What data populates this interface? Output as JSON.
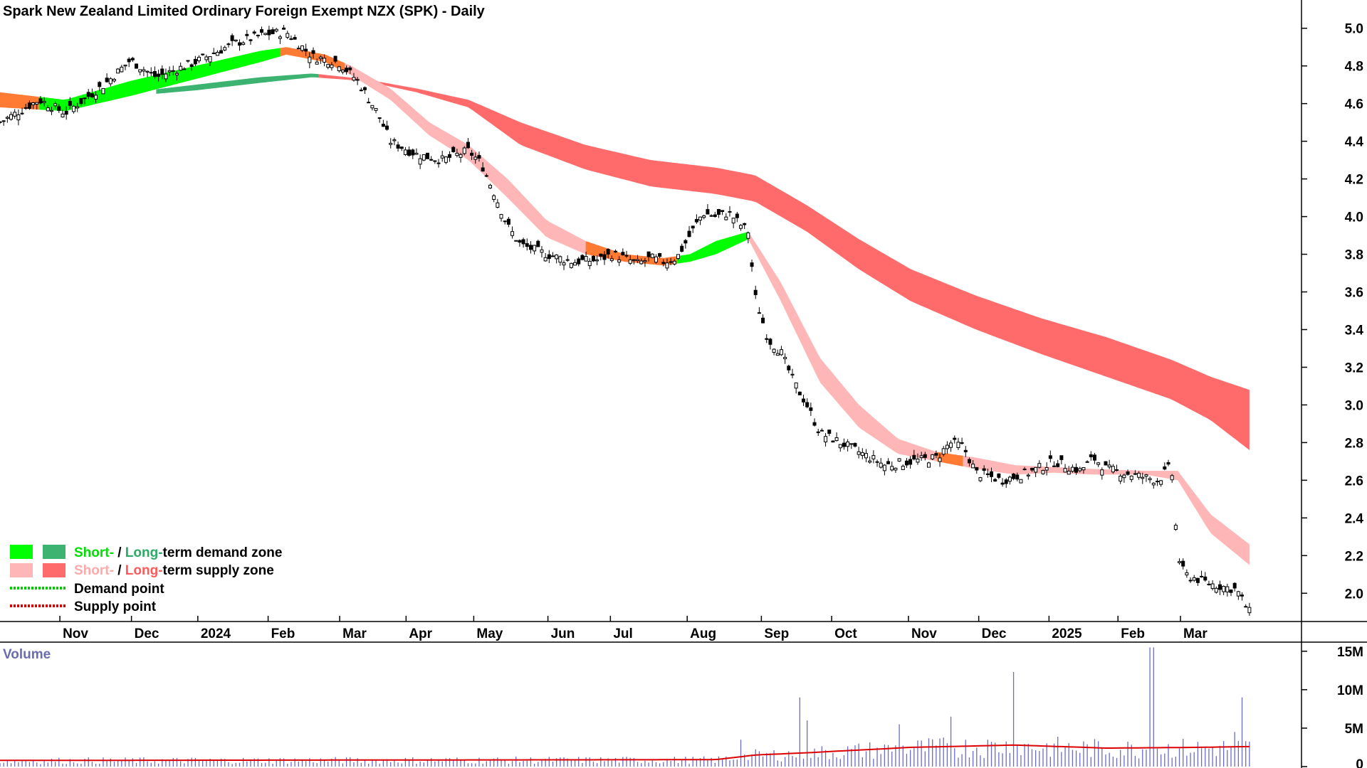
{
  "chart_data": {
    "type": "candlestick",
    "title": "Spark New Zealand Limited Ordinary Foreign Exempt NZX (SPK) - Daily",
    "price_axis": {
      "ylim": [
        1.85,
        5.15
      ],
      "ticks": [
        "5.0",
        "4.8",
        "4.6",
        "4.4",
        "4.2",
        "4.0",
        "3.8",
        "3.6",
        "3.4",
        "3.2",
        "3.0",
        "2.8",
        "2.6",
        "2.4",
        "2.2",
        "2.0"
      ]
    },
    "month_labels": [
      "Nov",
      "Dec",
      "2024",
      "Feb",
      "Mar",
      "Apr",
      "May",
      "Jun",
      "Jul",
      "Aug",
      "Sep",
      "Oct",
      "Nov",
      "Dec",
      "2025",
      "Feb",
      "Mar"
    ],
    "volume_axis": {
      "title": "Volume",
      "ylim": [
        0,
        16
      ],
      "ticks": [
        "15M",
        "10M",
        "5M",
        "0"
      ]
    },
    "legend": [
      {
        "prefix_short": "Short-",
        "sep": " / ",
        "prefix_long": "Long-",
        "rest": "term demand zone",
        "short_color": "#00ff00",
        "long_color": "#3cb371"
      },
      {
        "prefix_short": "Short-",
        "sep": " / ",
        "prefix_long": "Long-",
        "rest": "term supply zone",
        "short_color": "#ffb6b6",
        "long_color": "#ff6b6b"
      },
      {
        "label": "Demand point",
        "color": "#00cc00"
      },
      {
        "label": "Supply point",
        "color": "#dd0000"
      }
    ],
    "price_path": [
      [
        0,
        4.5
      ],
      [
        0.03,
        4.62
      ],
      [
        0.05,
        4.55
      ],
      [
        0.08,
        4.7
      ],
      [
        0.1,
        4.83
      ],
      [
        0.12,
        4.74
      ],
      [
        0.15,
        4.82
      ],
      [
        0.18,
        4.92
      ],
      [
        0.205,
        4.97
      ],
      [
        0.22,
        4.98
      ],
      [
        0.24,
        4.85
      ],
      [
        0.26,
        4.82
      ],
      [
        0.275,
        4.72
      ],
      [
        0.29,
        4.55
      ],
      [
        0.3,
        4.4
      ],
      [
        0.32,
        4.33
      ],
      [
        0.34,
        4.3
      ],
      [
        0.36,
        4.35
      ],
      [
        0.37,
        4.28
      ],
      [
        0.38,
        4.12
      ],
      [
        0.39,
        3.95
      ],
      [
        0.4,
        3.85
      ],
      [
        0.42,
        3.8
      ],
      [
        0.44,
        3.76
      ],
      [
        0.46,
        3.77
      ],
      [
        0.47,
        3.8
      ],
      [
        0.48,
        3.78
      ],
      [
        0.49,
        3.75
      ],
      [
        0.5,
        3.78
      ],
      [
        0.51,
        3.76
      ],
      [
        0.52,
        3.78
      ],
      [
        0.53,
        3.9
      ],
      [
        0.54,
        4.02
      ],
      [
        0.55,
        4.0
      ],
      [
        0.56,
        4.02
      ],
      [
        0.57,
        3.95
      ],
      [
        0.575,
        3.92
      ],
      [
        0.58,
        3.58
      ],
      [
        0.59,
        3.35
      ],
      [
        0.6,
        3.28
      ],
      [
        0.61,
        3.12
      ],
      [
        0.62,
        3.0
      ],
      [
        0.63,
        2.85
      ],
      [
        0.64,
        2.82
      ],
      [
        0.66,
        2.75
      ],
      [
        0.68,
        2.68
      ],
      [
        0.7,
        2.7
      ],
      [
        0.72,
        2.72
      ],
      [
        0.73,
        2.8
      ],
      [
        0.74,
        2.78
      ],
      [
        0.75,
        2.64
      ],
      [
        0.77,
        2.6
      ],
      [
        0.79,
        2.64
      ],
      [
        0.81,
        2.7
      ],
      [
        0.83,
        2.65
      ],
      [
        0.84,
        2.72
      ],
      [
        0.85,
        2.66
      ],
      [
        0.87,
        2.63
      ],
      [
        0.89,
        2.6
      ],
      [
        0.9,
        2.68
      ],
      [
        0.905,
        2.2
      ],
      [
        0.91,
        2.1
      ],
      [
        0.93,
        2.05
      ],
      [
        0.95,
        2.02
      ],
      [
        0.96,
        1.9
      ]
    ],
    "short_band": {
      "top": [
        [
          0,
          4.66
        ],
        [
          0.05,
          4.62
        ],
        [
          0.1,
          4.72
        ],
        [
          0.15,
          4.8
        ],
        [
          0.2,
          4.88
        ],
        [
          0.22,
          4.9
        ],
        [
          0.25,
          4.86
        ],
        [
          0.27,
          4.8
        ],
        [
          0.3,
          4.68
        ],
        [
          0.33,
          4.5
        ],
        [
          0.36,
          4.38
        ],
        [
          0.39,
          4.2
        ],
        [
          0.42,
          3.98
        ],
        [
          0.45,
          3.87
        ],
        [
          0.48,
          3.8
        ],
        [
          0.51,
          3.78
        ],
        [
          0.53,
          3.8
        ],
        [
          0.55,
          3.87
        ],
        [
          0.575,
          3.92
        ],
        [
          0.6,
          3.65
        ],
        [
          0.63,
          3.25
        ],
        [
          0.66,
          3.0
        ],
        [
          0.69,
          2.82
        ],
        [
          0.72,
          2.75
        ],
        [
          0.75,
          2.72
        ],
        [
          0.78,
          2.68
        ],
        [
          0.81,
          2.67
        ],
        [
          0.84,
          2.66
        ],
        [
          0.88,
          2.65
        ],
        [
          0.905,
          2.65
        ],
        [
          0.93,
          2.42
        ],
        [
          0.96,
          2.26
        ]
      ],
      "bottom": [
        [
          0,
          4.58
        ],
        [
          0.05,
          4.56
        ],
        [
          0.1,
          4.64
        ],
        [
          0.15,
          4.73
        ],
        [
          0.2,
          4.82
        ],
        [
          0.22,
          4.86
        ],
        [
          0.25,
          4.82
        ],
        [
          0.27,
          4.75
        ],
        [
          0.3,
          4.62
        ],
        [
          0.33,
          4.43
        ],
        [
          0.36,
          4.3
        ],
        [
          0.39,
          4.1
        ],
        [
          0.42,
          3.89
        ],
        [
          0.45,
          3.8
        ],
        [
          0.48,
          3.76
        ],
        [
          0.51,
          3.74
        ],
        [
          0.53,
          3.76
        ],
        [
          0.55,
          3.8
        ],
        [
          0.575,
          3.88
        ],
        [
          0.6,
          3.55
        ],
        [
          0.63,
          3.12
        ],
        [
          0.66,
          2.88
        ],
        [
          0.69,
          2.74
        ],
        [
          0.72,
          2.7
        ],
        [
          0.75,
          2.66
        ],
        [
          0.78,
          2.63
        ],
        [
          0.81,
          2.64
        ],
        [
          0.84,
          2.63
        ],
        [
          0.88,
          2.63
        ],
        [
          0.905,
          2.6
        ],
        [
          0.93,
          2.32
        ],
        [
          0.96,
          2.15
        ]
      ]
    },
    "long_band": {
      "top": [
        [
          0,
          4.65
        ],
        [
          0.1,
          4.66
        ],
        [
          0.15,
          4.7
        ],
        [
          0.2,
          4.74
        ],
        [
          0.24,
          4.76
        ],
        [
          0.28,
          4.73
        ],
        [
          0.32,
          4.68
        ],
        [
          0.36,
          4.62
        ],
        [
          0.4,
          4.5
        ],
        [
          0.45,
          4.38
        ],
        [
          0.5,
          4.3
        ],
        [
          0.55,
          4.26
        ],
        [
          0.58,
          4.22
        ],
        [
          0.62,
          4.06
        ],
        [
          0.66,
          3.88
        ],
        [
          0.7,
          3.72
        ],
        [
          0.75,
          3.58
        ],
        [
          0.8,
          3.46
        ],
        [
          0.85,
          3.36
        ],
        [
          0.9,
          3.24
        ],
        [
          0.93,
          3.15
        ],
        [
          0.96,
          3.08
        ]
      ],
      "bottom": [
        [
          0,
          4.65
        ],
        [
          0.1,
          4.64
        ],
        [
          0.15,
          4.67
        ],
        [
          0.2,
          4.71
        ],
        [
          0.24,
          4.74
        ],
        [
          0.28,
          4.72
        ],
        [
          0.32,
          4.66
        ],
        [
          0.36,
          4.58
        ],
        [
          0.4,
          4.38
        ],
        [
          0.45,
          4.25
        ],
        [
          0.5,
          4.16
        ],
        [
          0.55,
          4.12
        ],
        [
          0.58,
          4.08
        ],
        [
          0.62,
          3.92
        ],
        [
          0.66,
          3.72
        ],
        [
          0.7,
          3.55
        ],
        [
          0.75,
          3.4
        ],
        [
          0.8,
          3.27
        ],
        [
          0.85,
          3.15
        ],
        [
          0.9,
          3.03
        ],
        [
          0.93,
          2.92
        ],
        [
          0.96,
          2.76
        ]
      ]
    },
    "volume_profile": [
      [
        0,
        0.8
      ],
      [
        0.55,
        0.9
      ],
      [
        0.58,
        1.5
      ],
      [
        0.62,
        1.8
      ],
      [
        0.7,
        2.5
      ],
      [
        0.78,
        2.8
      ],
      [
        0.85,
        2.4
      ],
      [
        0.92,
        2.5
      ],
      [
        0.96,
        2.6
      ]
    ],
    "volume_spikes": [
      [
        0.57,
        3.5
      ],
      [
        0.615,
        9.0
      ],
      [
        0.62,
        6.0
      ],
      [
        0.69,
        5.5
      ],
      [
        0.73,
        6.5
      ],
      [
        0.78,
        12.3
      ],
      [
        0.885,
        15.5
      ],
      [
        0.955,
        9.0
      ],
      [
        0.95,
        4.5
      ]
    ]
  }
}
